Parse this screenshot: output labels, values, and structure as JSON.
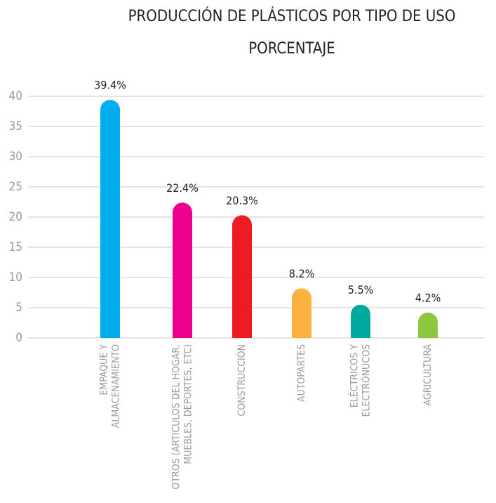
{
  "chart_data": {
    "type": "bar",
    "title": "PRODUCCIÓN DE PLÁSTICOS POR TIPO DE USO",
    "subtitle": "PORCENTAJE",
    "categories": [
      [
        "EMPAQUE Y",
        "ALMACENAMIENTO"
      ],
      [
        "OTROS (ARTICULOS DEL HOGAR,",
        "MUEBLES, DEPORTES, ETC)"
      ],
      [
        "CONSTRUCCIÓN"
      ],
      [
        "AUTOPARTES"
      ],
      [
        "ELÉCTRICOS Y",
        "ELECTRÓNUCOS"
      ],
      [
        "AGRICULTURA"
      ]
    ],
    "values": [
      39.4,
      22.4,
      20.3,
      8.2,
      5.5,
      4.2
    ],
    "value_labels": [
      "39.4%",
      "22.4%",
      "20.3%",
      "8.2%",
      "5.5%",
      "4.2%"
    ],
    "colors": [
      "#00aeef",
      "#ec008c",
      "#ed1c24",
      "#fbb040",
      "#00a99d",
      "#8dc63f"
    ],
    "ylim": [
      0,
      40
    ],
    "yticks": [
      0,
      5,
      10,
      15,
      20,
      25,
      30,
      35,
      40
    ],
    "grid": true
  }
}
